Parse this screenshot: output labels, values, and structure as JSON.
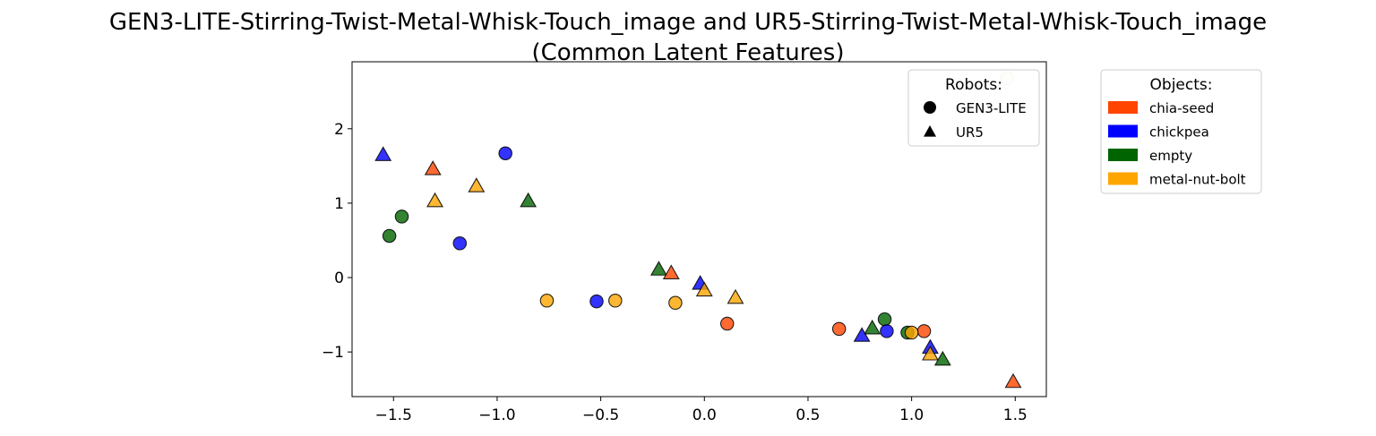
{
  "chart_data": {
    "type": "scatter",
    "title_line1": "GEN3-LITE-Stirring-Twist-Metal-Whisk-Touch_image and UR5-Stirring-Twist-Metal-Whisk-Touch_image",
    "title_line2": "(Common Latent Features)",
    "xlabel": "",
    "ylabel": "",
    "xlim": [
      -1.7,
      1.65
    ],
    "ylim": [
      -1.6,
      2.9
    ],
    "xticks": [
      -1.5,
      -1.0,
      -0.5,
      0.0,
      0.5,
      1.0,
      1.5
    ],
    "xtick_labels": [
      "−1.5",
      "−1.0",
      "−0.5",
      "0.0",
      "0.5",
      "1.0",
      "1.5"
    ],
    "yticks": [
      -1,
      0,
      1,
      2
    ],
    "ytick_labels": [
      "−1",
      "0",
      "1",
      "2"
    ],
    "grid": false,
    "robots_legend": {
      "title": "Robots:",
      "placement": "top-right inside plot",
      "entries": [
        {
          "label": "GEN3-LITE",
          "marker": "circle"
        },
        {
          "label": "UR5",
          "marker": "triangle"
        }
      ]
    },
    "objects_legend": {
      "title": "Objects:",
      "placement": "outside right",
      "entries": [
        {
          "label": "chia-seed",
          "color": "#FF4500"
        },
        {
          "label": "chickpea",
          "color": "#0000FF"
        },
        {
          "label": "empty",
          "color": "#006400"
        },
        {
          "label": "metal-nut-bolt",
          "color": "#FFA500"
        }
      ]
    },
    "points": [
      {
        "x": -1.55,
        "y": 1.65,
        "robot": "UR5",
        "object": "chickpea"
      },
      {
        "x": -1.31,
        "y": 1.46,
        "robot": "UR5",
        "object": "chia-seed"
      },
      {
        "x": -1.3,
        "y": 1.03,
        "robot": "UR5",
        "object": "metal-nut-bolt"
      },
      {
        "x": -1.1,
        "y": 1.23,
        "robot": "UR5",
        "object": "metal-nut-bolt"
      },
      {
        "x": -0.85,
        "y": 1.03,
        "robot": "UR5",
        "object": "empty"
      },
      {
        "x": -0.96,
        "y": 1.67,
        "robot": "GEN3-LITE",
        "object": "chickpea"
      },
      {
        "x": -1.46,
        "y": 0.82,
        "robot": "GEN3-LITE",
        "object": "empty"
      },
      {
        "x": -1.52,
        "y": 0.56,
        "robot": "GEN3-LITE",
        "object": "empty"
      },
      {
        "x": -1.18,
        "y": 0.46,
        "robot": "GEN3-LITE",
        "object": "chickpea"
      },
      {
        "x": -0.76,
        "y": -0.31,
        "robot": "GEN3-LITE",
        "object": "metal-nut-bolt"
      },
      {
        "x": -0.52,
        "y": -0.32,
        "robot": "GEN3-LITE",
        "object": "chickpea"
      },
      {
        "x": -0.43,
        "y": -0.31,
        "robot": "GEN3-LITE",
        "object": "metal-nut-bolt"
      },
      {
        "x": -0.14,
        "y": -0.34,
        "robot": "GEN3-LITE",
        "object": "metal-nut-bolt"
      },
      {
        "x": -0.22,
        "y": 0.11,
        "robot": "UR5",
        "object": "empty"
      },
      {
        "x": -0.16,
        "y": 0.06,
        "robot": "UR5",
        "object": "chia-seed"
      },
      {
        "x": -0.02,
        "y": -0.08,
        "robot": "UR5",
        "object": "chickpea"
      },
      {
        "x": 0.0,
        "y": -0.17,
        "robot": "UR5",
        "object": "metal-nut-bolt"
      },
      {
        "x": 0.15,
        "y": -0.27,
        "robot": "UR5",
        "object": "metal-nut-bolt"
      },
      {
        "x": 0.11,
        "y": -0.62,
        "robot": "GEN3-LITE",
        "object": "chia-seed"
      },
      {
        "x": 0.65,
        "y": -0.69,
        "robot": "GEN3-LITE",
        "object": "chia-seed"
      },
      {
        "x": 0.76,
        "y": -0.78,
        "robot": "UR5",
        "object": "chickpea"
      },
      {
        "x": 0.81,
        "y": -0.68,
        "robot": "UR5",
        "object": "empty"
      },
      {
        "x": 0.87,
        "y": -0.56,
        "robot": "GEN3-LITE",
        "object": "empty"
      },
      {
        "x": 0.88,
        "y": -0.72,
        "robot": "GEN3-LITE",
        "object": "chickpea"
      },
      {
        "x": 0.98,
        "y": -0.74,
        "robot": "GEN3-LITE",
        "object": "empty"
      },
      {
        "x": 1.06,
        "y": -0.72,
        "robot": "GEN3-LITE",
        "object": "chia-seed"
      },
      {
        "x": 1.0,
        "y": -0.74,
        "robot": "GEN3-LITE",
        "object": "metal-nut-bolt"
      },
      {
        "x": 1.09,
        "y": -0.94,
        "robot": "UR5",
        "object": "chickpea"
      },
      {
        "x": 1.09,
        "y": -1.03,
        "robot": "UR5",
        "object": "metal-nut-bolt"
      },
      {
        "x": 1.15,
        "y": -1.1,
        "robot": "UR5",
        "object": "empty"
      },
      {
        "x": 1.49,
        "y": -1.4,
        "robot": "UR5",
        "object": "chia-seed"
      },
      {
        "x": 1.46,
        "y": 2.68,
        "robot": "GEN3-LITE",
        "object": "metal-nut-bolt",
        "faint": true
      }
    ]
  }
}
